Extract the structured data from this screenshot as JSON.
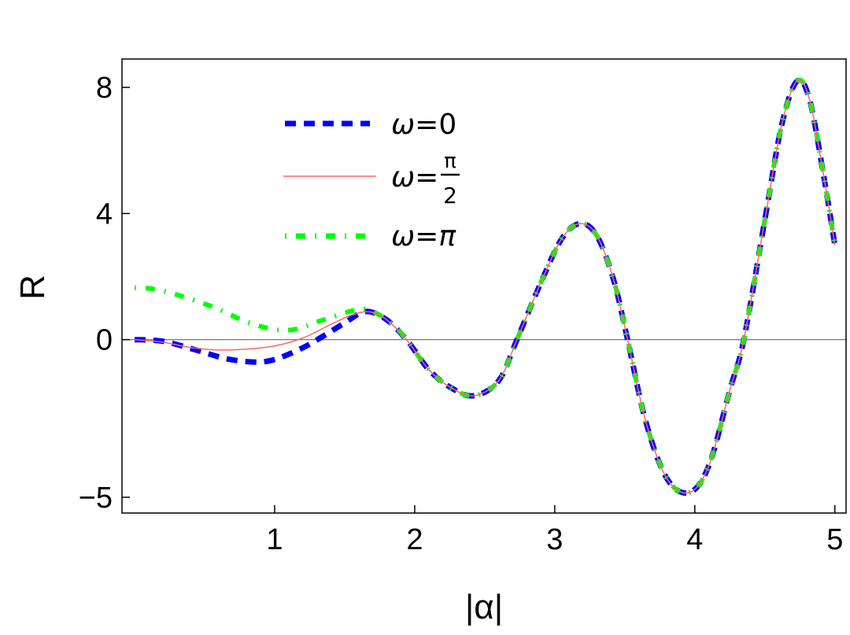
{
  "chart_data": {
    "type": "line",
    "title": "",
    "xlabel": "|α|",
    "ylabel": "R",
    "xlim": [
      -0.09,
      5.08
    ],
    "ylim": [
      -5.5,
      8.9
    ],
    "xticks": [
      "1",
      "2",
      "3",
      "4",
      "5"
    ],
    "yticks": [
      "8",
      "4",
      "0",
      "−5"
    ],
    "xtick_values": [
      1,
      2,
      3,
      4,
      5
    ],
    "ytick_values": [
      8,
      4,
      0,
      -5
    ],
    "grid": false,
    "zero_line": true,
    "legend_position": "top-left",
    "series": [
      {
        "name": "ω=0",
        "color": "#0000ff",
        "style": "dashed",
        "x": [
          0,
          0.2,
          0.44,
          0.65,
          0.85,
          1.0,
          1.2,
          1.35,
          1.5,
          1.65,
          1.8,
          1.95,
          2.1,
          2.25,
          2.42,
          2.6,
          2.73,
          2.9,
          3.05,
          3.18,
          3.3,
          3.42,
          3.52,
          3.65,
          3.8,
          3.96,
          4.1,
          4.25,
          4.35,
          4.5,
          4.62,
          4.73,
          4.82,
          4.92,
          5.0
        ],
        "y": [
          0,
          -0.05,
          -0.33,
          -0.6,
          -0.71,
          -0.63,
          -0.26,
          0.12,
          0.53,
          0.89,
          0.63,
          -0.05,
          -0.95,
          -1.5,
          -1.78,
          -1.3,
          0,
          1.8,
          3.2,
          3.68,
          3.3,
          1.9,
          0,
          -2.6,
          -4.4,
          -4.85,
          -4.0,
          -1.6,
          0,
          3.8,
          6.8,
          8.2,
          7.6,
          5.2,
          3.0
        ]
      },
      {
        "name": "ω=π/2",
        "color": "#ff6666",
        "style": "solid",
        "x": [
          0,
          0.2,
          0.4,
          0.6,
          0.8,
          1.0,
          1.2,
          1.4,
          1.55,
          1.68,
          1.8,
          1.95,
          2.1,
          2.25,
          2.42,
          2.6,
          2.73,
          2.9,
          3.05,
          3.18,
          3.3,
          3.42,
          3.52,
          3.65,
          3.8,
          3.96,
          4.1,
          4.25,
          4.35,
          4.5,
          4.62,
          4.73,
          4.82,
          4.92,
          5.0
        ],
        "y": [
          0,
          -0.08,
          -0.25,
          -0.33,
          -0.3,
          -0.2,
          0.05,
          0.48,
          0.78,
          0.88,
          0.63,
          -0.05,
          -0.95,
          -1.5,
          -1.78,
          -1.3,
          0,
          1.8,
          3.2,
          3.68,
          3.3,
          1.9,
          0,
          -2.6,
          -4.4,
          -4.85,
          -4.0,
          -1.6,
          0,
          3.8,
          6.8,
          8.2,
          7.6,
          5.2,
          3.0
        ]
      },
      {
        "name": "ω=π",
        "color": "#00ff00",
        "style": "dashdot",
        "x": [
          0,
          0.2,
          0.54,
          0.84,
          1.1,
          1.35,
          1.6,
          1.72,
          1.85,
          1.95,
          2.1,
          2.25,
          2.42,
          2.6,
          2.73,
          2.9,
          3.05,
          3.18,
          3.3,
          3.42,
          3.52,
          3.65,
          3.8,
          3.96,
          4.1,
          4.25,
          4.35,
          4.5,
          4.62,
          4.73,
          4.82,
          4.92,
          5.0
        ],
        "y": [
          1.65,
          1.55,
          1.07,
          0.5,
          0.3,
          0.63,
          0.96,
          0.85,
          0.45,
          -0.05,
          -0.95,
          -1.5,
          -1.78,
          -1.3,
          0,
          1.8,
          3.2,
          3.68,
          3.3,
          1.9,
          0,
          -2.6,
          -4.4,
          -4.85,
          -4.0,
          -1.6,
          0,
          3.8,
          6.8,
          8.2,
          7.6,
          5.2,
          3.0
        ]
      }
    ],
    "legend": {
      "entries": [
        {
          "prefix": "ω=",
          "value": "0"
        },
        {
          "prefix": "ω=",
          "numerator": "π",
          "denominator": "2"
        },
        {
          "prefix": "ω=",
          "value": "π"
        }
      ]
    }
  }
}
